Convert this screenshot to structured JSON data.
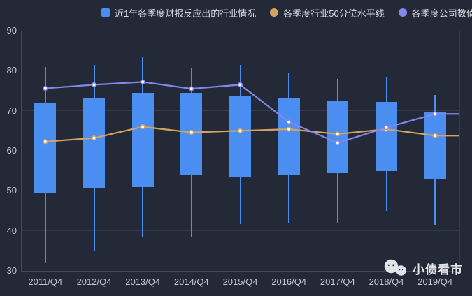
{
  "legend": {
    "items": [
      {
        "label": "近1年各季度财报反应出的行业情况",
        "marker": "square",
        "color": "#4b8ef2"
      },
      {
        "label": "各季度行业50分位水平线",
        "marker": "circle",
        "color": "#d4a361"
      },
      {
        "label": "各季度公司数值",
        "marker": "circle",
        "color": "#8287e8"
      }
    ]
  },
  "watermark": {
    "text": "小债看市",
    "icon": "wechat-icon"
  },
  "colors": {
    "background": "#232936",
    "box_blue": "#4b8ef2",
    "orange_line": "#d4a361",
    "purple_line": "#8287e8",
    "gridline": "#323a4b",
    "axis_line": "#414a5f",
    "y_tick_text": "#c9ceda",
    "x_tick_text": "#c2c9d8",
    "marker_fill": "#ffffff"
  },
  "chart_data": {
    "type": "boxplot",
    "categories": [
      "2011/Q4",
      "2012/Q4",
      "2013/Q4",
      "2014/Q4",
      "2015/Q4",
      "2016/Q4",
      "2017/Q4",
      "2018/Q4",
      "2019/Q4"
    ],
    "series": [
      {
        "name": "近1年各季度财报反应出的行业情况",
        "type": "candlestick",
        "color": "#4b8ef2",
        "values_format": "[low, boxBottom, boxTop, high]",
        "values": [
          [
            32,
            49.5,
            72,
            81
          ],
          [
            35,
            50.5,
            73,
            81.5
          ],
          [
            38.5,
            51,
            74.5,
            83.5
          ],
          [
            38.5,
            54,
            74.5,
            80.7
          ],
          [
            41.7,
            53.5,
            73.7,
            81.5
          ],
          [
            41.8,
            54,
            73.3,
            79.5
          ],
          [
            42,
            54.5,
            72.3,
            78
          ],
          [
            45,
            55,
            72.2,
            78.3
          ],
          [
            41.5,
            53,
            69.8,
            74
          ]
        ]
      },
      {
        "name": "各季度行业50分位水平线",
        "type": "line",
        "color": "#d4a361",
        "values": [
          62.3,
          63.2,
          66,
          64.6,
          65,
          65.4,
          64.2,
          65.4,
          63.8
        ]
      },
      {
        "name": "各季度公司数值",
        "type": "line",
        "color": "#8287e8",
        "values": [
          75.6,
          76.5,
          77.2,
          75.5,
          76.5,
          67.2,
          62,
          65.8,
          69.2
        ]
      }
    ],
    "title": "",
    "xlabel": "",
    "ylabel": "",
    "ylim": [
      30,
      90
    ],
    "yticks": [
      30,
      40,
      50,
      60,
      70,
      80,
      90
    ],
    "grid": true,
    "legend_position": "top",
    "lines_extend_to_right_edge": true
  }
}
